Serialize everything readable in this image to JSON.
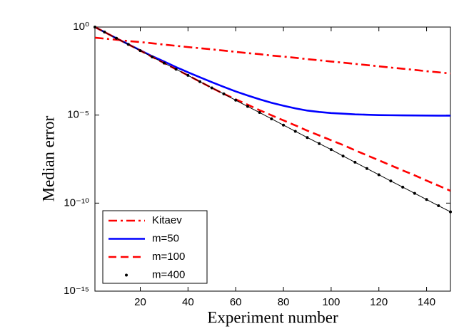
{
  "chart_data": {
    "type": "line",
    "xlabel": "Experiment number",
    "ylabel": "Median error",
    "yscale": "log",
    "xlim": [
      1,
      150
    ],
    "ylim": [
      1e-15,
      1
    ],
    "xticks": [
      20,
      40,
      60,
      80,
      100,
      120,
      140
    ],
    "yticks": [
      {
        "value": 1e-15,
        "label": "10⁻¹⁵"
      },
      {
        "value": 1e-10,
        "label": "10⁻¹⁰"
      },
      {
        "value": 1e-05,
        "label": "10⁻⁵"
      },
      {
        "value": 1,
        "label": "10⁰"
      }
    ],
    "legend": "lower left",
    "x": [
      1,
      5,
      10,
      15,
      20,
      25,
      30,
      35,
      40,
      45,
      50,
      55,
      60,
      65,
      70,
      75,
      80,
      85,
      90,
      95,
      100,
      105,
      110,
      115,
      120,
      125,
      130,
      135,
      140,
      145,
      150
    ],
    "series": [
      {
        "name": "Kitaev",
        "color": "#ff0000",
        "style": "dashdot",
        "values": [
          0.25,
          0.22,
          0.19,
          0.16,
          0.14,
          0.12,
          0.1,
          0.086,
          0.073,
          0.063,
          0.054,
          0.046,
          0.039,
          0.033,
          0.029,
          0.024,
          0.021,
          0.018,
          0.015,
          0.013,
          0.011,
          0.0095,
          0.0081,
          0.0069,
          0.0059,
          0.005,
          0.0043,
          0.0037,
          0.0031,
          0.0027,
          0.0023
        ]
      },
      {
        "name": "m=50",
        "color": "#0000ff",
        "style": "solid",
        "values": [
          1,
          0.52,
          0.23,
          0.105,
          0.048,
          0.022,
          0.011,
          0.0053,
          0.0027,
          0.0014,
          0.00074,
          0.0004,
          0.00022,
          0.00013,
          7.9e-05,
          5e-05,
          3.4e-05,
          2.4e-05,
          1.8e-05,
          1.5e-05,
          1.3e-05,
          1.2e-05,
          1.1e-05,
          1.05e-05,
          1e-05,
          9.8e-06,
          9.6e-06,
          9.5e-06,
          9.4e-06,
          9.3e-06,
          9.3e-06
        ]
      },
      {
        "name": "m=100",
        "color": "#ff0000",
        "style": "dashed",
        "values": [
          1,
          0.52,
          0.23,
          0.103,
          0.046,
          0.02,
          0.009,
          0.004,
          0.0018,
          0.00079,
          0.00035,
          0.00016,
          7.8e-05,
          3.9e-05,
          1.9e-05,
          9.7e-06,
          5e-06,
          2.6e-06,
          1.3e-06,
          7e-07,
          3.7e-07,
          2e-07,
          1e-07,
          5.2e-08,
          2.7e-08,
          1.4e-08,
          7.2e-09,
          3.8e-09,
          1.9e-09,
          9.8e-10,
          5e-10
        ]
      },
      {
        "name": "m=400",
        "color": "#000000",
        "style": "dots",
        "values": [
          1,
          0.52,
          0.23,
          0.103,
          0.046,
          0.02,
          0.009,
          0.004,
          0.0018,
          0.00079,
          0.00035,
          0.00016,
          7e-05,
          3.1e-05,
          1.4e-05,
          6.1e-06,
          2.7e-06,
          1.2e-06,
          5.3e-07,
          2.4e-07,
          1.1e-07,
          4.7e-08,
          2.1e-08,
          9.2e-09,
          4.1e-09,
          1.8e-09,
          8.1e-10,
          3.6e-10,
          1.6e-10,
          7.1e-11,
          3.2e-11
        ]
      }
    ]
  }
}
